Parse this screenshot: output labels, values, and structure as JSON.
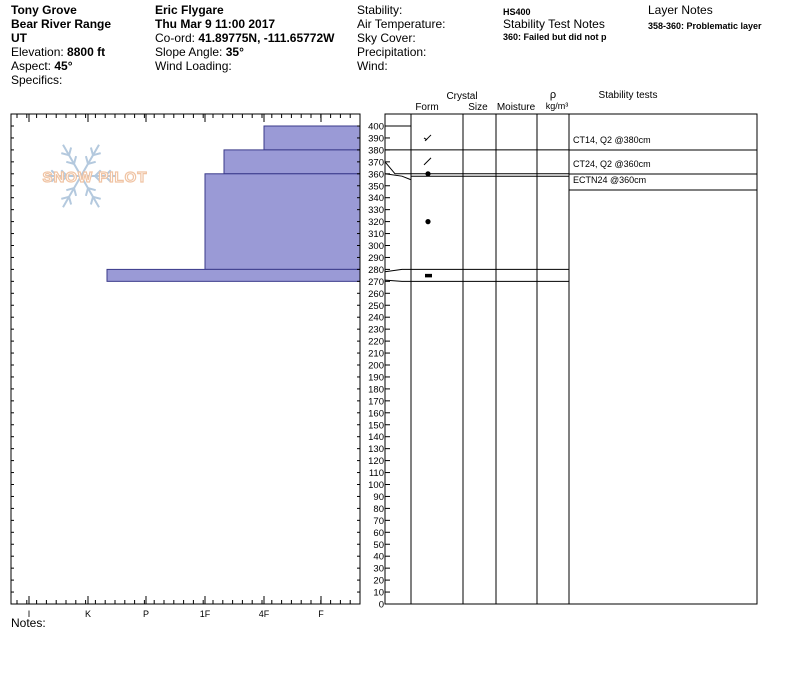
{
  "header": {
    "location": "Tony Grove",
    "range": "Bear River Range",
    "state": "UT",
    "elevation_label": "Elevation:",
    "elevation": "8800 ft",
    "aspect_label": "Aspect:",
    "aspect": "45°",
    "specifics_label": "Specifics:",
    "observer": "Eric Flygare",
    "datetime": "Thu Mar 9 11:00 2017",
    "coord_label": "Co-ord:",
    "coord": "41.89775N, -111.65772W",
    "slope_label": "Slope Angle:",
    "slope": "35°",
    "wind_loading_label": "Wind Loading:",
    "stability_label": "Stability:",
    "air_temp_label": "Air Temperature:",
    "sky_label": "Sky Cover:",
    "precip_label": "Precipitation:",
    "wind_label": "Wind:",
    "hs": "HS400",
    "stability_notes_title": "Stability Test Notes",
    "stability_note": "360: Failed but did not p",
    "layer_notes_title": "Layer Notes",
    "layer_note": "358-360: Problematic layer"
  },
  "logo_text": "SNOW PILOT",
  "notes_label": "Notes:",
  "columns": {
    "crystal": "Crystal",
    "form": "Form",
    "size": "Size",
    "moisture": "Moisture",
    "rho": "ρ",
    "density_unit": "kg/m³",
    "stability_tests": "Stability tests"
  },
  "chart_data": {
    "type": "bar",
    "title": "",
    "x_categories": [
      "I",
      "K",
      "P",
      "1F",
      "4F",
      "F"
    ],
    "ylim": [
      0,
      400
    ],
    "y_ticks_step": 10,
    "layers": [
      {
        "top": 400,
        "bottom": 380,
        "hardness": "4F"
      },
      {
        "top": 380,
        "bottom": 360,
        "hardness": "1F+"
      },
      {
        "top": 360,
        "bottom": 280,
        "hardness": "1F"
      },
      {
        "top": 280,
        "bottom": 270,
        "hardness": "K+"
      }
    ],
    "crystal_symbols": [
      {
        "height": 390,
        "symbol": "decomposing"
      },
      {
        "height": 370,
        "symbol": "decomposing-2"
      },
      {
        "height": 360,
        "symbol": "rounded"
      },
      {
        "height": 320,
        "symbol": "rounded"
      },
      {
        "height": 275,
        "symbol": "crust"
      }
    ],
    "layer_boundaries": [
      380,
      360,
      358,
      280,
      270
    ],
    "stability_tests": [
      {
        "height": 380,
        "label": "CT14, Q2 @380cm"
      },
      {
        "height": 360,
        "label": "CT24, Q2 @360cm"
      },
      {
        "height": 360,
        "label": "ECTN24 @360cm"
      }
    ]
  }
}
